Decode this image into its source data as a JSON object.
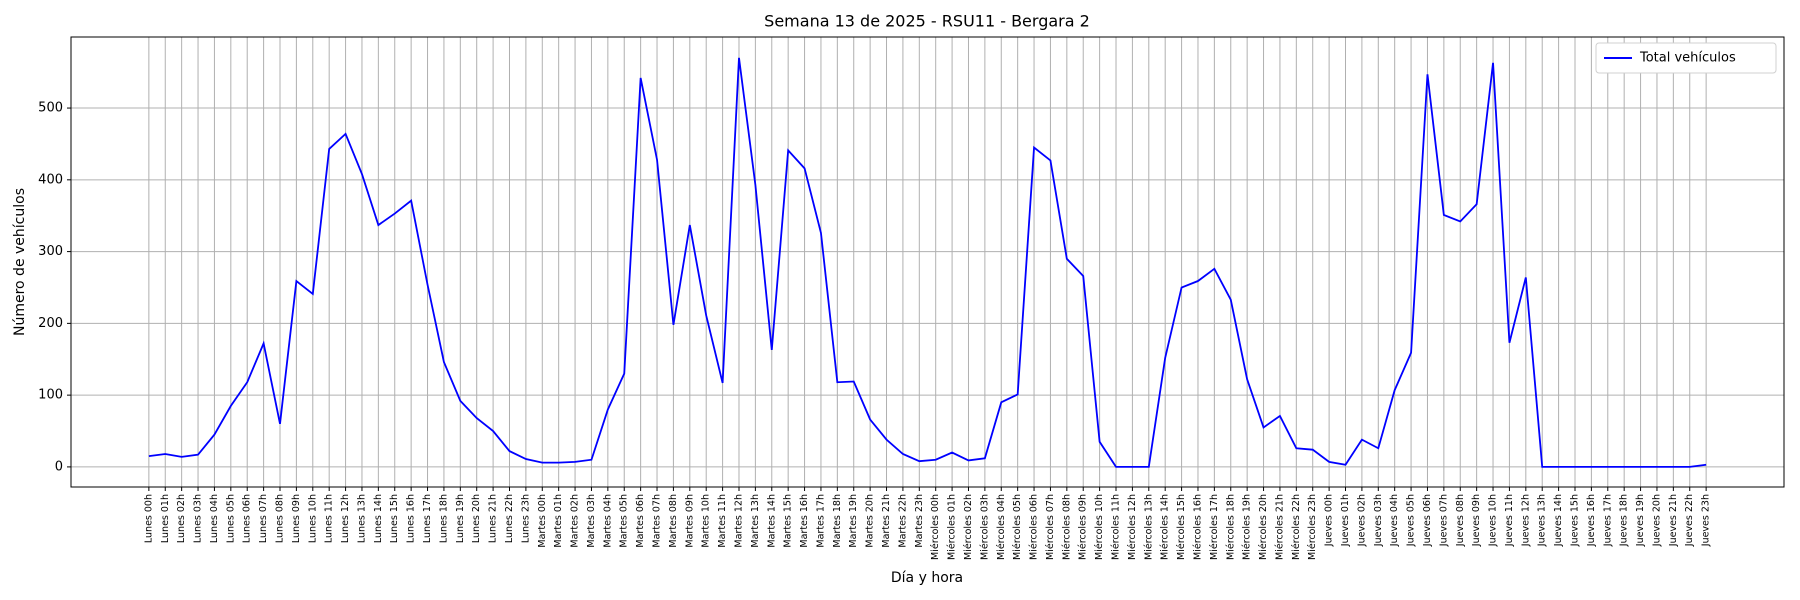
{
  "chart_data": {
    "type": "line",
    "title": "Semana 13 de 2025 - RSU11 - Bergara 2",
    "x_label": "Día y hora",
    "y_label": "Número de vehículos",
    "categories": [
      "Lunes 00h",
      "Lunes 01h",
      "Lunes 02h",
      "Lunes 03h",
      "Lunes 04h",
      "Lunes 05h",
      "Lunes 06h",
      "Lunes 07h",
      "Lunes 08h",
      "Lunes 09h",
      "Lunes 10h",
      "Lunes 11h",
      "Lunes 12h",
      "Lunes 13h",
      "Lunes 14h",
      "Lunes 15h",
      "Lunes 16h",
      "Lunes 17h",
      "Lunes 18h",
      "Lunes 19h",
      "Lunes 20h",
      "Lunes 21h",
      "Lunes 22h",
      "Lunes 23h",
      "Martes 00h",
      "Martes 01h",
      "Martes 02h",
      "Martes 03h",
      "Martes 04h",
      "Martes 05h",
      "Martes 06h",
      "Martes 07h",
      "Martes 08h",
      "Martes 09h",
      "Martes 10h",
      "Martes 11h",
      "Martes 12h",
      "Martes 13h",
      "Martes 14h",
      "Martes 15h",
      "Martes 16h",
      "Martes 17h",
      "Martes 18h",
      "Martes 19h",
      "Martes 20h",
      "Martes 21h",
      "Martes 22h",
      "Martes 23h",
      "Miércoles 00h",
      "Miércoles 01h",
      "Miércoles 02h",
      "Miércoles 03h",
      "Miércoles 04h",
      "Miércoles 05h",
      "Miércoles 06h",
      "Miércoles 07h",
      "Miércoles 08h",
      "Miércoles 09h",
      "Miércoles 10h",
      "Miércoles 11h",
      "Miércoles 12h",
      "Miércoles 13h",
      "Miércoles 14h",
      "Miércoles 15h",
      "Miércoles 16h",
      "Miércoles 17h",
      "Miércoles 18h",
      "Miércoles 19h",
      "Miércoles 20h",
      "Miércoles 21h",
      "Miércoles 22h",
      "Miércoles 23h",
      "Jueves 00h",
      "Jueves 01h",
      "Jueves 02h",
      "Jueves 03h",
      "Jueves 04h",
      "Jueves 05h",
      "Jueves 06h",
      "Jueves 07h",
      "Jueves 08h",
      "Jueves 09h",
      "Jueves 10h",
      "Jueves 11h",
      "Jueves 12h",
      "Jueves 13h",
      "Jueves 14h",
      "Jueves 15h",
      "Jueves 16h",
      "Jueves 17h",
      "Jueves 18h",
      "Jueves 19h",
      "Jueves 20h",
      "Jueves 21h",
      "Jueves 22h",
      "Jueves 23h"
    ],
    "series": [
      {
        "name": "Total vehículos",
        "color": "#0000ff",
        "values": [
          15,
          18,
          14,
          17,
          45,
          85,
          118,
          172,
          60,
          259,
          241,
          443,
          464,
          408,
          337,
          353,
          371,
          254,
          146,
          92,
          68,
          50,
          22,
          11,
          6,
          6,
          7,
          10,
          80,
          130,
          542,
          428,
          198,
          337,
          211,
          117,
          570,
          393,
          163,
          441,
          416,
          326,
          118,
          119,
          66,
          38,
          18,
          8,
          10,
          20,
          9,
          12,
          90,
          101,
          445,
          427,
          290,
          266,
          35,
          0,
          0,
          0,
          152,
          250,
          259,
          276,
          233,
          122,
          55,
          71,
          26,
          24,
          7,
          3,
          38,
          26,
          107,
          159,
          547,
          351,
          342,
          366,
          563,
          173,
          264,
          0,
          0,
          0,
          0,
          0,
          0,
          0,
          0,
          0,
          0,
          3
        ]
      }
    ],
    "ylim": [
      -28,
      599
    ],
    "yticks": [
      0,
      100,
      200,
      300,
      400,
      500
    ],
    "grid": true,
    "legend": "upper right"
  }
}
